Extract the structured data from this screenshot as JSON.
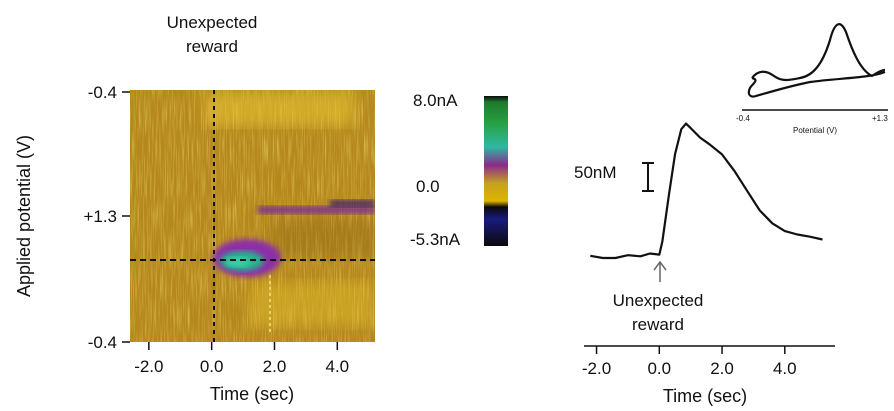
{
  "chart_data": [
    {
      "type": "heatmap",
      "title": "",
      "annotation": {
        "line1": "Unexpected",
        "line2": "reward",
        "x": 0
      },
      "xlabel": "Time (sec)",
      "ylabel": "Applied potential (V)",
      "xlim": [
        -2.6,
        5.2
      ],
      "x_ticks": [
        {
          "v": -2.0,
          "label": "-2.0"
        },
        {
          "v": 0.0,
          "label": "0.0"
        },
        {
          "v": 2.0,
          "label": "2.0"
        },
        {
          "v": 4.0,
          "label": "4.0"
        }
      ],
      "y_ticks": [
        "-0.4",
        "+1.3",
        "-0.4"
      ],
      "colorbar": {
        "max_label": "8.0nA",
        "zero_label": "0.0",
        "min_label": "-5.3nA",
        "colors": [
          "#0b0b0b",
          "#1c7a2c",
          "#27a043",
          "#2fb8a3",
          "#8a2a8c",
          "#c5a020",
          "#e0b400",
          "#0a0a0a",
          "#1a1a80",
          "#0b0b0b"
        ]
      },
      "colors": {
        "background": "#b88a1a",
        "positive": "#2fb89b",
        "negative": "#7b2ea0",
        "bright": "#e2c22a"
      }
    },
    {
      "type": "line",
      "title": "",
      "xlabel": "Time (sec)",
      "xlim": [
        -2.4,
        5.6
      ],
      "x_ticks": [
        {
          "v": -2.0,
          "label": "-2.0"
        },
        {
          "v": 0.0,
          "label": "0.0"
        },
        {
          "v": 2.0,
          "label": "2.0"
        },
        {
          "v": 4.0,
          "label": "4.0"
        }
      ],
      "scale_bar": {
        "label": "50nM",
        "value": 50
      },
      "annotation": {
        "line1": "Unexpected",
        "line2": "reward",
        "x": 0
      },
      "series": [
        {
          "x": [
            -2.2,
            -1.8,
            -1.4,
            -1.0,
            -0.6,
            -0.3,
            0.0,
            0.1,
            0.3,
            0.5,
            0.7,
            0.85,
            1.0,
            1.3,
            1.6,
            2.0,
            2.4,
            2.8,
            3.2,
            3.6,
            4.0,
            4.4,
            4.8,
            5.2
          ],
          "y": [
            4,
            0,
            0,
            5,
            3,
            8,
            6,
            30,
            110,
            185,
            230,
            240,
            232,
            215,
            203,
            185,
            155,
            120,
            85,
            62,
            48,
            42,
            38,
            33
          ]
        }
      ],
      "inset": {
        "type": "line",
        "xlabel": "Potential (V)",
        "x_min_label": "-0.4",
        "x_max_label": "+1.3"
      }
    }
  ]
}
